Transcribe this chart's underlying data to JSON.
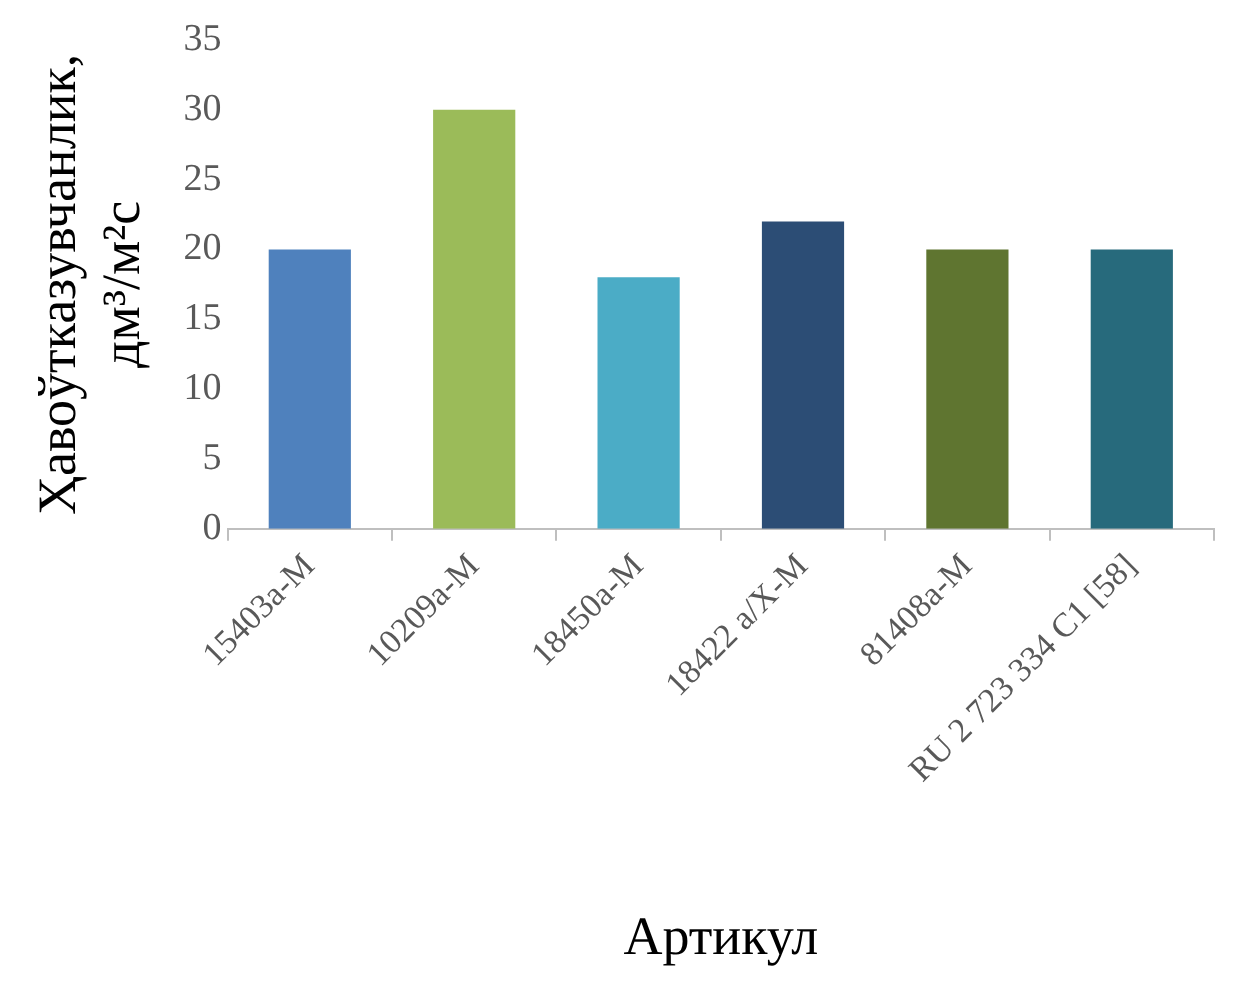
{
  "chart_data": {
    "type": "bar",
    "xlabel": "Артикул",
    "ylabel": "Ҳавоўтказувчанлик, дм³/м²с",
    "categories": [
      "15403а-М",
      "10209а-М",
      "18450а-М",
      "18422 а/Х-М",
      "81408а-М",
      "RU 2 723 334 C1 [58]"
    ],
    "values": [
      20,
      30,
      18,
      22,
      20,
      20
    ],
    "colors": [
      "#4f81bd",
      "#9bbb59",
      "#4bacc6",
      "#2c4d75",
      "#5f7530",
      "#276a7c"
    ],
    "ylim": [
      0,
      35
    ],
    "yticks": [
      0,
      5,
      10,
      15,
      20,
      25,
      30,
      35
    ],
    "grid": false,
    "legend": false
  }
}
